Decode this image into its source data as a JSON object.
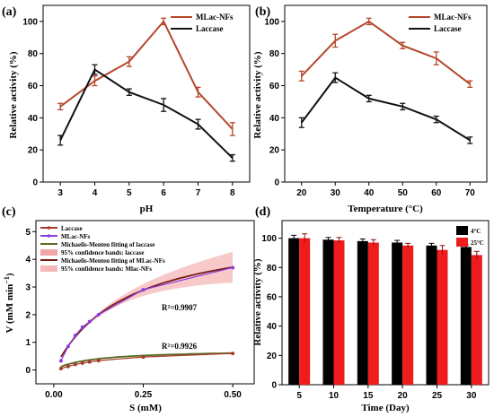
{
  "chart_data": [
    {
      "panel": "(a)",
      "type": "line",
      "x": [
        3,
        4,
        5,
        6,
        7,
        8
      ],
      "xlabel": "pH",
      "ylabel": "Relative activity (%)",
      "xlim": [
        2.5,
        8.5
      ],
      "ylim": [
        0,
        110
      ],
      "xticks": [
        "3",
        "4",
        "5",
        "6",
        "7",
        "8"
      ],
      "yticks": [
        "0",
        "20",
        "40",
        "60",
        "80",
        "100"
      ],
      "legend_position": "top-right",
      "series": [
        {
          "name": "MLac-NFs",
          "color": "#b5472b",
          "values": [
            47,
            63,
            75,
            100,
            56,
            33
          ],
          "errors": [
            2,
            3,
            3,
            2,
            3,
            4
          ]
        },
        {
          "name": "Laccase",
          "color": "#111111",
          "values": [
            26,
            70,
            56,
            48,
            36,
            15
          ],
          "errors": [
            3,
            3,
            2,
            4,
            3,
            2
          ]
        }
      ]
    },
    {
      "panel": "(b)",
      "type": "line",
      "x": [
        20,
        30,
        40,
        50,
        60,
        70
      ],
      "xlabel": "Temperature (°C)",
      "ylabel": "Relative activity (%)",
      "xlim": [
        15,
        75
      ],
      "ylim": [
        0,
        110
      ],
      "xticks": [
        "20",
        "30",
        "40",
        "50",
        "60",
        "70"
      ],
      "yticks": [
        "0",
        "20",
        "40",
        "60",
        "80",
        "100"
      ],
      "legend_position": "top-right",
      "series": [
        {
          "name": "MLac-NFs",
          "color": "#b5472b",
          "values": [
            66,
            88,
            100,
            85,
            77,
            61
          ],
          "errors": [
            3,
            4,
            2,
            2,
            4,
            2
          ]
        },
        {
          "name": "Laccase",
          "color": "#111111",
          "values": [
            37,
            65,
            52,
            47,
            39,
            26
          ],
          "errors": [
            3,
            3,
            2,
            2,
            2,
            2
          ]
        }
      ]
    },
    {
      "panel": "(c)",
      "type": "line",
      "xlabel": "S (mM)",
      "ylabel": "V (mM min",
      "ylabel_sup": "−1",
      "ylabel_end": ")",
      "xlim": [
        -0.05,
        0.56
      ],
      "ylim": [
        -0.5,
        5.4
      ],
      "xticks": [
        "0.00",
        "0.25",
        "0.50"
      ],
      "yticks": [
        "0",
        "1",
        "2",
        "3",
        "4",
        "5"
      ],
      "legend_position": "top-left",
      "annotations": [
        "R²=0.9907",
        "R²=0.9926"
      ],
      "series": [
        {
          "name": "Laccase",
          "color": "#a83a2a",
          "x": [
            0.02,
            0.04,
            0.06,
            0.08,
            0.1,
            0.125,
            0.25,
            0.5
          ],
          "values": [
            0.05,
            0.13,
            0.2,
            0.25,
            0.29,
            0.34,
            0.47,
            0.6
          ]
        },
        {
          "name": "MLac-NFs",
          "color": "#8b3ee0",
          "x": [
            0.02,
            0.04,
            0.06,
            0.08,
            0.1,
            0.125,
            0.25,
            0.5
          ],
          "values": [
            0.33,
            0.85,
            1.25,
            1.55,
            1.75,
            2.0,
            2.9,
            3.7
          ]
        },
        {
          "name": "Michaelis-Menten fitting of laccase",
          "color": "#556b1f",
          "vmax": 0.73,
          "km": 0.1
        },
        {
          "name": "95% confidence bands: laccase",
          "color": "#f2a6a6"
        },
        {
          "name": "Michaelis-Menten fitting of MLac-NFs",
          "color": "#7a1a12",
          "vmax": 5.2,
          "km": 0.2
        },
        {
          "name": "95% confidence bands: Mlac-NFs",
          "color": "#f5b7b7"
        }
      ]
    },
    {
      "panel": "(d)",
      "type": "bar",
      "categories": [
        "5",
        "10",
        "15",
        "20",
        "25",
        "30"
      ],
      "xlabel": "Time (Day)",
      "ylabel": "Relative activity (%)",
      "ylim": [
        0,
        112
      ],
      "yticks": [
        "0",
        "20",
        "40",
        "60",
        "80",
        "100"
      ],
      "legend_position": "top-right",
      "series": [
        {
          "name": "4°C",
          "color": "#000000",
          "values": [
            100,
            99,
            98,
            97,
            95,
            94
          ],
          "errors": [
            2,
            1.5,
            1.5,
            1.5,
            1.5,
            1.5
          ]
        },
        {
          "name": "25°C",
          "color": "#ee1c1c",
          "values": [
            100,
            98.5,
            97,
            95,
            92,
            88.5
          ],
          "errors": [
            3,
            2,
            2,
            1.5,
            3,
            2.5
          ]
        }
      ]
    }
  ]
}
